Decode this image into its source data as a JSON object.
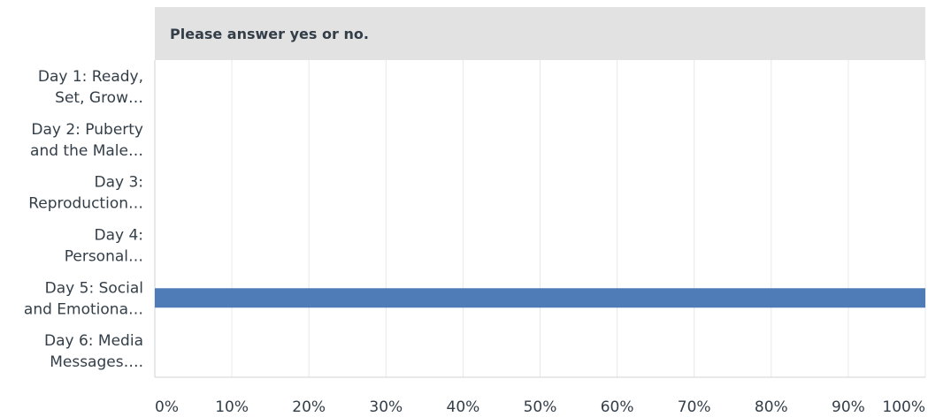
{
  "chart_data": {
    "type": "bar",
    "orientation": "horizontal",
    "title": "Please answer yes or no.",
    "categories": [
      [
        "Day 1: Ready,",
        "Set, Grow…"
      ],
      [
        "Day 2: Puberty",
        "and the Male…"
      ],
      [
        "Day 3:",
        "Reproduction…"
      ],
      [
        "Day 4:",
        "Personal…"
      ],
      [
        "Day 5: Social",
        "and Emotiona…"
      ],
      [
        "Day 6: Media",
        "Messages…."
      ]
    ],
    "values": [
      0,
      0,
      0,
      0,
      100,
      0
    ],
    "unit": "%",
    "xlim": [
      0,
      100
    ],
    "ticks": [
      "0%",
      "10%",
      "20%",
      "30%",
      "40%",
      "50%",
      "60%",
      "70%",
      "80%",
      "90%",
      "100%"
    ],
    "grid": true,
    "colors": {
      "bar": "#4f7bb7",
      "grid": "#e8e8e8",
      "axis": "#d0d3d6",
      "header_bg": "#e2e2e2",
      "text": "#333e48"
    }
  }
}
